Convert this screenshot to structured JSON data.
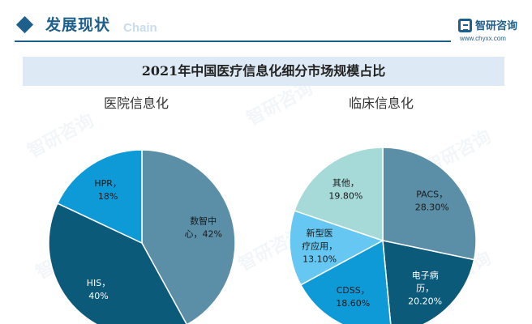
{
  "header": {
    "title": "发展现状",
    "watermark": "Chain",
    "logo_name": "智研咨询",
    "logo_url": "www.chyxx.com"
  },
  "colors": {
    "accent": "#1f5f8b",
    "title_band": "#dde9f4"
  },
  "chart_data": [
    {
      "type": "pie",
      "title": "2021年中国医疗信息化细分市场规模占比",
      "subtitle": "医院信息化",
      "slices": [
        {
          "label_lines": [
            "数智中",
            "心，42%"
          ],
          "value": 42,
          "color": "#5b8fa8",
          "text_color": "#1a1a1a"
        },
        {
          "label_lines": [
            "HIS，",
            "40%"
          ],
          "value": 40,
          "color": "#0b5a7a",
          "text_color": "#ffffff"
        },
        {
          "label_lines": [
            "HPR，",
            "18%"
          ],
          "value": 18,
          "color": "#0e9ad6",
          "text_color": "#1a1a1a"
        }
      ]
    },
    {
      "type": "pie",
      "subtitle": "临床信息化",
      "slices": [
        {
          "label_lines": [
            "PACS，",
            "28.30%"
          ],
          "value": 28.3,
          "color": "#5b8fa8",
          "text_color": "#1a1a1a"
        },
        {
          "label_lines": [
            "电子病",
            "历，",
            "20.20%"
          ],
          "value": 20.2,
          "color": "#0b5a7a",
          "text_color": "#ffffff"
        },
        {
          "label_lines": [
            "CDSS，",
            "18.60%"
          ],
          "value": 18.6,
          "color": "#0e9ad6",
          "text_color": "#1a1a1a"
        },
        {
          "label_lines": [
            "新型医",
            "疗应用，",
            "13.10%"
          ],
          "value": 13.1,
          "color": "#66c8f2",
          "text_color": "#1a1a1a"
        },
        {
          "label_lines": [
            "其他，",
            "19.80%"
          ],
          "value": 19.8,
          "color": "#a6dad8",
          "text_color": "#1a1a1a"
        }
      ]
    }
  ]
}
